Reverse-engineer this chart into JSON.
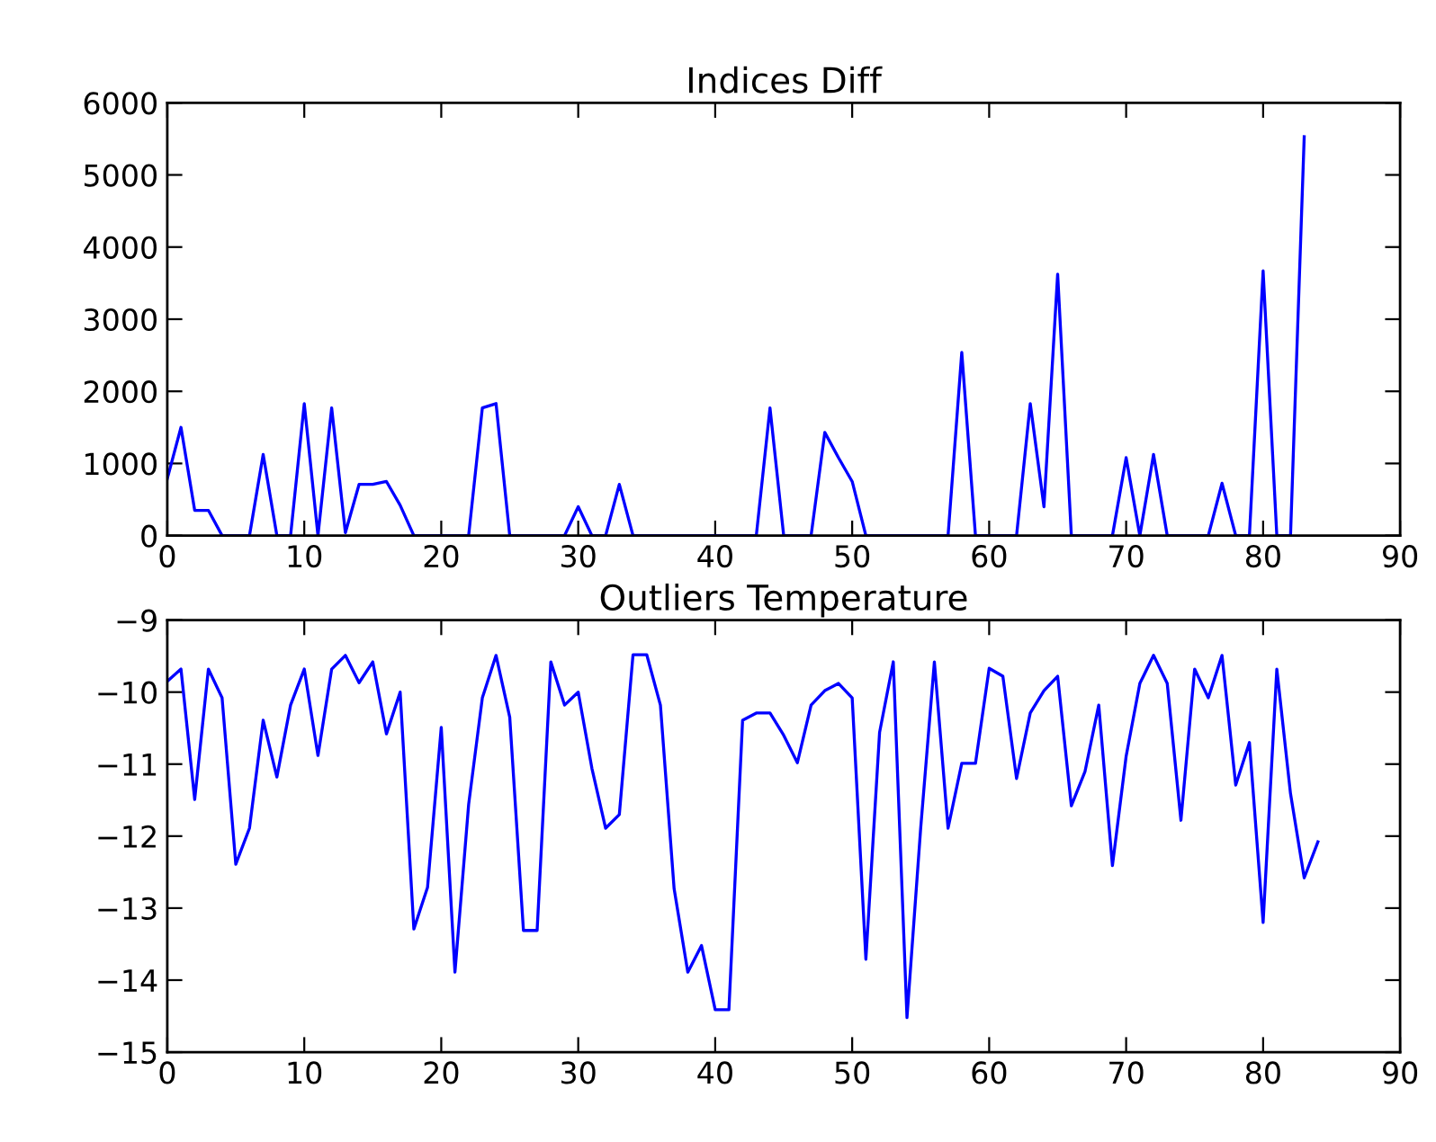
{
  "chart_data": [
    {
      "type": "line",
      "title": "Indices Diff",
      "x": [
        0,
        1,
        2,
        3,
        4,
        5,
        6,
        7,
        8,
        9,
        10,
        11,
        12,
        13,
        14,
        15,
        16,
        17,
        18,
        19,
        20,
        21,
        22,
        23,
        24,
        25,
        26,
        27,
        28,
        29,
        30,
        31,
        32,
        33,
        34,
        35,
        36,
        37,
        38,
        39,
        40,
        41,
        42,
        43,
        44,
        45,
        46,
        47,
        48,
        49,
        50,
        51,
        52,
        53,
        54,
        55,
        56,
        57,
        58,
        59,
        60,
        61,
        62,
        63,
        64,
        65,
        66,
        67,
        68,
        69,
        70,
        71,
        72,
        73,
        74,
        75,
        76,
        77,
        78,
        79,
        80,
        81,
        82,
        83
      ],
      "series": [
        {
          "color": "#0000ff",
          "values": [
            790,
            1500,
            350,
            350,
            0,
            0,
            0,
            1125,
            0,
            0,
            1830,
            0,
            1770,
            40,
            710,
            710,
            750,
            420,
            0,
            0,
            0,
            0,
            0,
            1770,
            1830,
            0,
            0,
            0,
            0,
            0,
            400,
            0,
            0,
            710,
            0,
            0,
            0,
            0,
            0,
            0,
            0,
            0,
            0,
            0,
            1770,
            0,
            0,
            0,
            1430,
            1080,
            750,
            0,
            0,
            0,
            0,
            0,
            0,
            0,
            2540,
            0,
            0,
            0,
            0,
            1830,
            400,
            3625,
            0,
            0,
            0,
            0,
            1080,
            0,
            1125,
            0,
            0,
            0,
            0,
            725,
            0,
            0,
            3670,
            0,
            0,
            5530
          ]
        }
      ],
      "xlim": [
        0,
        90
      ],
      "xticks": [
        0,
        10,
        20,
        30,
        40,
        50,
        60,
        70,
        80,
        90
      ],
      "ylim": [
        0,
        6000
      ],
      "yticks": [
        0,
        1000,
        2000,
        3000,
        4000,
        5000,
        6000
      ],
      "grid": false,
      "legend": false
    },
    {
      "type": "line",
      "title": "Outliers Temperature",
      "x": [
        0,
        1,
        2,
        3,
        4,
        5,
        6,
        7,
        8,
        9,
        10,
        11,
        12,
        13,
        14,
        15,
        16,
        17,
        18,
        19,
        20,
        21,
        22,
        23,
        24,
        25,
        26,
        27,
        28,
        29,
        30,
        31,
        32,
        33,
        34,
        35,
        36,
        37,
        38,
        39,
        40,
        41,
        42,
        43,
        44,
        45,
        46,
        47,
        48,
        49,
        50,
        51,
        52,
        53,
        54,
        55,
        56,
        57,
        58,
        59,
        60,
        61,
        62,
        63,
        64,
        65,
        66,
        67,
        68,
        69,
        70,
        71,
        72,
        73,
        74,
        75,
        76,
        77,
        78,
        79,
        80,
        81,
        82,
        83,
        84
      ],
      "series": [
        {
          "color": "#0000ff",
          "values": [
            -9.85,
            -9.68,
            -11.49,
            -9.68,
            -10.08,
            -12.39,
            -11.89,
            -10.39,
            -11.18,
            -10.18,
            -9.68,
            -10.88,
            -9.68,
            -9.49,
            -9.87,
            -9.58,
            -10.58,
            -10.0,
            -13.29,
            -12.71,
            -10.49,
            -13.89,
            -11.56,
            -10.08,
            -9.49,
            -10.35,
            -13.31,
            -13.31,
            -9.58,
            -10.18,
            -10.0,
            -11.06,
            -11.89,
            -11.7,
            -9.48,
            -9.48,
            -10.18,
            -12.73,
            -13.89,
            -13.52,
            -14.41,
            -14.41,
            -10.39,
            -10.29,
            -10.29,
            -10.6,
            -10.98,
            -10.18,
            -9.98,
            -9.88,
            -10.08,
            -13.71,
            -10.56,
            -9.58,
            -14.52,
            -11.89,
            -9.58,
            -11.89,
            -10.99,
            -10.99,
            -9.67,
            -9.78,
            -11.2,
            -10.29,
            -9.98,
            -9.78,
            -11.58,
            -11.1,
            -10.18,
            -12.41,
            -10.89,
            -9.88,
            -9.49,
            -9.88,
            -11.78,
            -9.68,
            -10.08,
            -9.49,
            -11.29,
            -10.7,
            -13.2,
            -9.68,
            -11.41,
            -12.58,
            -12.08
          ]
        }
      ],
      "xlim": [
        0,
        90
      ],
      "xticks": [
        0,
        10,
        20,
        30,
        40,
        50,
        60,
        70,
        80,
        90
      ],
      "ylim": [
        -15,
        -9
      ],
      "yticks": [
        {
          "value": -15,
          "label": "−15"
        },
        {
          "value": -14,
          "label": "−14"
        },
        {
          "value": -13,
          "label": "−13"
        },
        {
          "value": -12,
          "label": "−12"
        },
        {
          "value": -11,
          "label": "−11"
        },
        {
          "value": -10,
          "label": "−10"
        },
        {
          "value": -9,
          "label": "−9"
        }
      ],
      "grid": false,
      "legend": false
    }
  ]
}
